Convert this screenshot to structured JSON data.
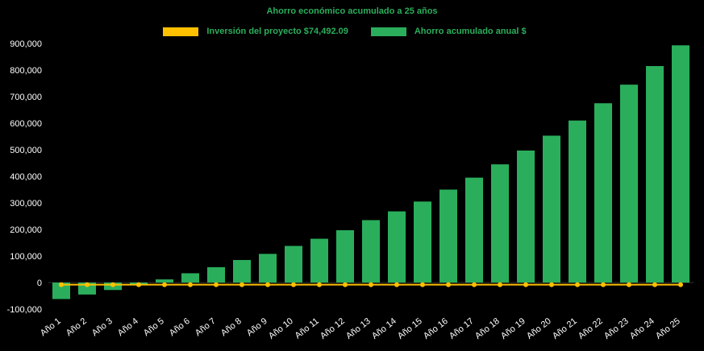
{
  "chart_data": {
    "type": "bar",
    "title": "Ahorro económico acumulado a 25 años",
    "categories": [
      "Año 1",
      "Año 2",
      "Año 3",
      "Año 4",
      "Año 5",
      "Año 6",
      "Año 7",
      "Año 8",
      "Año 9",
      "Año 10",
      "Año 11",
      "Año 12",
      "Año 13",
      "Año 14",
      "Año 15",
      "Año 16",
      "Año 17",
      "Año 18",
      "Año 19",
      "Año 20",
      "Año 21",
      "Año 22",
      "Año 23",
      "Año 24",
      "Año 25"
    ],
    "series": [
      {
        "name": "Inversión del proyecto $74,492.09",
        "type": "line",
        "color": "#FFC000",
        "values": [
          -8000,
          -8000,
          -8000,
          -8000,
          -8000,
          -8000,
          -8000,
          -8000,
          -8000,
          -8000,
          -8000,
          -8000,
          -8000,
          -8000,
          -8000,
          -8000,
          -8000,
          -8000,
          -8000,
          -8000,
          -8000,
          -8000,
          -8000,
          -8000,
          -8000
        ]
      },
      {
        "name": "Ahorro acumulado anual $",
        "type": "bar",
        "color": "#2BAE5C",
        "values": [
          -62000,
          -45000,
          -28000,
          -8000,
          12000,
          35000,
          58000,
          85000,
          108000,
          138000,
          165000,
          197000,
          235000,
          268000,
          305000,
          350000,
          395000,
          445000,
          497000,
          553000,
          610000,
          675000,
          745000,
          815000,
          893000
        ]
      }
    ],
    "ylim": [
      -100000,
      900000
    ],
    "ytick_step": 100000,
    "ytick_labels": [
      "-100,000",
      "0",
      "100,000",
      "200,000",
      "300,000",
      "400,000",
      "500,000",
      "600,000",
      "700,000",
      "800,000",
      "900,000"
    ],
    "legend_position": "top",
    "grid": false,
    "background_color": "#000000",
    "axis_label_color": "#FFFFFF"
  }
}
